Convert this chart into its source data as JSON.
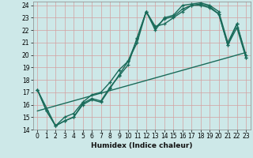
{
  "title": "",
  "xlabel": "Humidex (Indice chaleur)",
  "xlim": [
    -0.5,
    23.5
  ],
  "ylim": [
    14,
    24.3
  ],
  "xticks": [
    0,
    1,
    2,
    3,
    4,
    5,
    6,
    7,
    8,
    9,
    10,
    11,
    12,
    13,
    14,
    15,
    16,
    17,
    18,
    19,
    20,
    21,
    22,
    23
  ],
  "yticks": [
    14,
    15,
    16,
    17,
    18,
    19,
    20,
    21,
    22,
    23,
    24
  ],
  "bg_color": "#cde8e8",
  "line_color": "#1a6b5a",
  "grid_color": "#b0d0d0",
  "line1_x": [
    0,
    1,
    2,
    3,
    4,
    5,
    6,
    7,
    8,
    9,
    10,
    11,
    12,
    13,
    14,
    15,
    16,
    17,
    18,
    19,
    20,
    21,
    22,
    23
  ],
  "line1_y": [
    17.2,
    15.5,
    14.3,
    14.7,
    15.0,
    16.1,
    16.5,
    16.3,
    17.4,
    18.3,
    19.2,
    21.4,
    23.5,
    22.2,
    22.9,
    23.1,
    23.7,
    24.0,
    24.1,
    23.9,
    23.3,
    20.8,
    22.2,
    19.8
  ],
  "line2_x": [
    0,
    2,
    3,
    4,
    5,
    6,
    7,
    8,
    9,
    10,
    11,
    12,
    13,
    14,
    15,
    16,
    17,
    18,
    19,
    20,
    21,
    22,
    23
  ],
  "line2_y": [
    17.2,
    14.3,
    14.7,
    15.0,
    16.0,
    16.4,
    16.2,
    17.3,
    18.4,
    19.5,
    21.3,
    23.5,
    22.3,
    22.5,
    23.0,
    23.5,
    24.0,
    24.0,
    23.8,
    23.3,
    20.8,
    22.5,
    19.8
  ],
  "line3_x": [
    0,
    23
  ],
  "line3_y": [
    15.5,
    20.2
  ],
  "line4_x": [
    0,
    1,
    2,
    3,
    4,
    5,
    6,
    7,
    8,
    9,
    10,
    11,
    12,
    13,
    14,
    15,
    16,
    17,
    18,
    19,
    20,
    21,
    22,
    23
  ],
  "line4_y": [
    17.2,
    15.5,
    14.3,
    15.0,
    15.3,
    16.2,
    16.8,
    17.0,
    17.8,
    18.8,
    19.5,
    21.0,
    23.5,
    22.0,
    23.0,
    23.2,
    24.0,
    24.1,
    24.2,
    24.0,
    23.5,
    21.0,
    22.5,
    20.0
  ]
}
